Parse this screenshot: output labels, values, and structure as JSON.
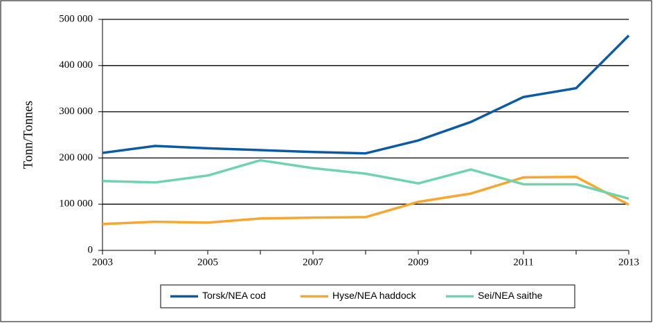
{
  "chart_data": {
    "type": "line",
    "y_label": "Tonn/Tonnes",
    "x": [
      2003,
      2004,
      2005,
      2006,
      2007,
      2008,
      2009,
      2010,
      2011,
      2012,
      2013
    ],
    "series": [
      {
        "name": "Torsk/NEA cod",
        "color": "#0b5aa6",
        "values": [
          211000,
          226000,
          221000,
          217000,
          213000,
          210000,
          238000,
          278000,
          332000,
          351000,
          465000
        ]
      },
      {
        "name": "Hyse/NEA haddock",
        "color": "#f8a630",
        "values": [
          57000,
          62000,
          60000,
          69000,
          71000,
          72000,
          105000,
          123000,
          158000,
          159000,
          99000
        ]
      },
      {
        "name": "Sei/NEA saithe",
        "color": "#6ed3ae",
        "values": [
          150000,
          147000,
          162000,
          195000,
          178000,
          166000,
          145000,
          175000,
          143000,
          143000,
          112000
        ]
      }
    ],
    "xlim": [
      2003,
      2013
    ],
    "xticks": [
      2003,
      2005,
      2007,
      2009,
      2011,
      2013
    ],
    "ylim": [
      0,
      500000
    ],
    "yticks": [
      0,
      {
        "value": 100000,
        "label": "100 000"
      },
      {
        "value": 200000,
        "label": "200 000"
      },
      {
        "value": 300000,
        "label": "300 000"
      },
      {
        "value": 400000,
        "label": "400 000"
      },
      {
        "value": 500000,
        "label": "500 000"
      }
    ],
    "grid": true,
    "legend": "bottom"
  }
}
